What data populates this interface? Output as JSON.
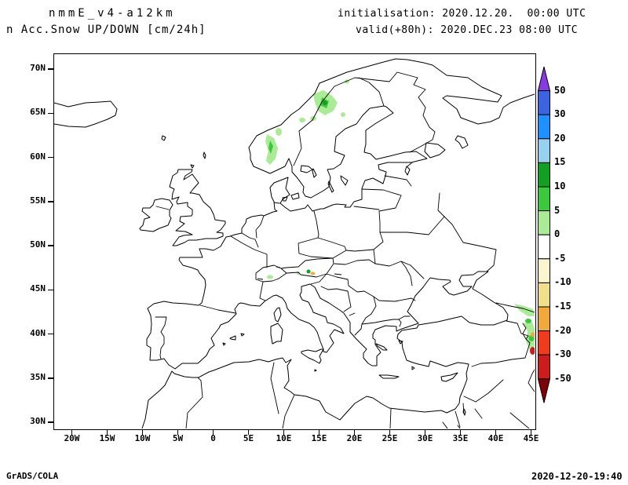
{
  "header": {
    "left": {
      "line1": "nmmE_v4-a12km",
      "line2": "n Acc.Snow UP/DOWN [cm/24h]"
    },
    "right": {
      "line1": "initialisation: 2020.12.20.  00:00 UTC",
      "line2": "valid(+80h): 2020.DEC.23 08:00 UTC"
    }
  },
  "footer": {
    "credit": "GrADS/COLA",
    "generated": "2020-12-20-19:40"
  },
  "map": {
    "lat_ticks": [
      "70N",
      "65N",
      "60N",
      "55N",
      "50N",
      "45N",
      "40N",
      "35N",
      "30N"
    ],
    "lon_ticks": [
      "20W",
      "15W",
      "10W",
      "5W",
      "0",
      "5E",
      "10E",
      "15E",
      "20E",
      "25E",
      "30E",
      "35E",
      "40E",
      "45E"
    ],
    "line_color": "#000000"
  },
  "colorbar": {
    "labels": [
      "50",
      "30",
      "20",
      "15",
      "10",
      "5",
      "0",
      "-5",
      "-10",
      "-15",
      "-20",
      "-30",
      "-50"
    ],
    "colors": [
      "#8a3ae2",
      "#3c64e0",
      "#1e90ff",
      "#96d2f0",
      "#12a022",
      "#3cc83c",
      "#aaeb96",
      "#ffffff",
      "#fcf6d0",
      "#f0e08c",
      "#f0aa3c",
      "#f03c1e",
      "#cd1c1e",
      "#7e0308"
    ]
  },
  "chart_data": {
    "type": "heatmap",
    "title": "n Acc.Snow UP/DOWN [cm/24h]",
    "units": "cm/24h",
    "x_axis": {
      "tick_labels": [
        "20W",
        "15W",
        "10W",
        "5W",
        "0",
        "5E",
        "10E",
        "15E",
        "20E",
        "25E",
        "30E",
        "35E",
        "40E",
        "45E"
      ],
      "range_deg_lon": [
        -22.5,
        45.5
      ]
    },
    "y_axis": {
      "tick_labels": [
        "70N",
        "65N",
        "60N",
        "55N",
        "50N",
        "45N",
        "40N",
        "35N",
        "30N"
      ],
      "range_deg_lat": [
        29.3,
        71.7
      ]
    },
    "colorbar_levels": [
      50,
      30,
      20,
      15,
      10,
      5,
      0,
      -5,
      -10,
      -15,
      -20,
      -30,
      -50
    ],
    "legend_position": "right",
    "grid": false,
    "shaded_regions": [
      {
        "area": "southern Norway mountains",
        "approx_lon": 8,
        "approx_lat": 61,
        "value_cm": "0 to 10 (light/mid green)"
      },
      {
        "area": "northern Sweden / Norway border (Lapland)",
        "approx_lon": 16,
        "approx_lat": 66,
        "value_cm": "0 to 15 (green, small dark-green core)"
      },
      {
        "area": "Alps (Switzerland / Austria)",
        "approx_lon": 11,
        "approx_lat": 47,
        "value_cm": "specks 0 to 15 green and -15 to -20 orange"
      },
      {
        "area": "Caucasus / Georgia / Armenia / Azerbaijan / eastern Turkey",
        "approx_lon": 44.5,
        "approx_lat": 40,
        "value_cm": "0 to 10 green, -15 to -20 orange speck, -30 to -50 red speck"
      }
    ]
  }
}
